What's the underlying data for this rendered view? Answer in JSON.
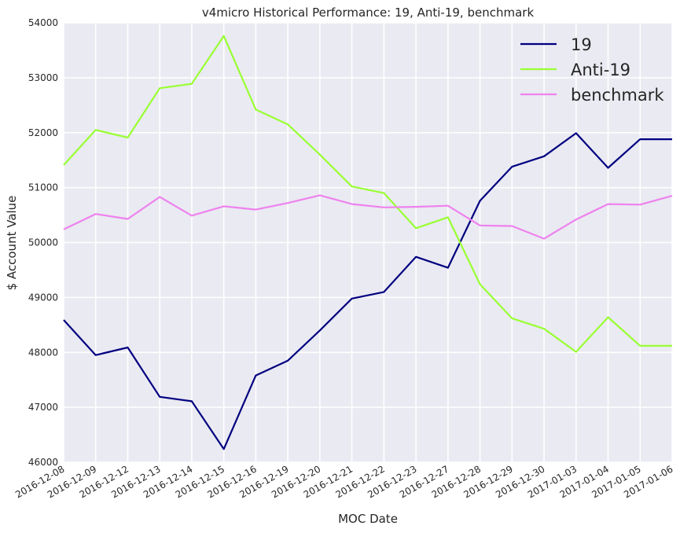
{
  "chart_data": {
    "type": "line",
    "title": "v4micro Historical Performance: 19, Anti-19, benchmark",
    "xlabel": "MOC Date",
    "ylabel": "$ Account Value",
    "ylim": [
      46000,
      54000
    ],
    "yticks": [
      "46000",
      "47000",
      "48000",
      "49000",
      "50000",
      "51000",
      "52000",
      "53000",
      "54000"
    ],
    "grid": true,
    "legend_position": "top-right",
    "categories": [
      "2016-12-08",
      "2016-12-09",
      "2016-12-12",
      "2016-12-13",
      "2016-12-14",
      "2016-12-15",
      "2016-12-16",
      "2016-12-19",
      "2016-12-20",
      "2016-12-21",
      "2016-12-22",
      "2016-12-23",
      "2016-12-27",
      "2016-12-28",
      "2016-12-29",
      "2016-12-30",
      "2017-01-03",
      "2017-01-04",
      "2017-01-05",
      "2017-01-06"
    ],
    "series": [
      {
        "name": "19",
        "color": "#000080",
        "values": [
          48590,
          47950,
          48090,
          47190,
          47110,
          46240,
          47580,
          47850,
          48400,
          48980,
          49100,
          49740,
          49540,
          50760,
          51380,
          51570,
          51990,
          51360,
          51880,
          51880
        ]
      },
      {
        "name": "Anti-19",
        "color": "#99ff33",
        "values": [
          51410,
          52050,
          51910,
          52810,
          52890,
          53760,
          52420,
          52150,
          51600,
          51020,
          50900,
          50260,
          50460,
          49240,
          48620,
          48430,
          48010,
          48640,
          48120,
          48120
        ]
      },
      {
        "name": "benchmark",
        "color": "#ee82ee",
        "values": [
          50240,
          50520,
          50430,
          50830,
          50490,
          50660,
          50600,
          50720,
          50860,
          50700,
          50640,
          50650,
          50670,
          50310,
          50300,
          50070,
          50420,
          50700,
          50690,
          50850
        ]
      }
    ]
  }
}
